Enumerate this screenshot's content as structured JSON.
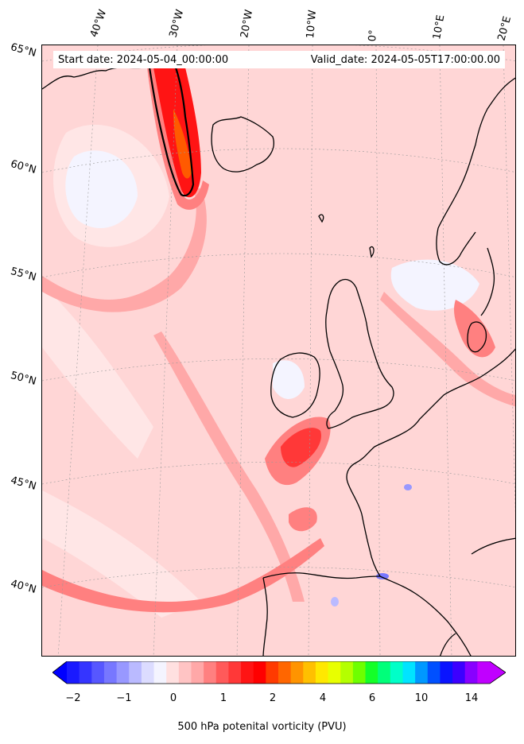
{
  "map": {
    "header_left": "Start date: 2024-05-04_00:00:00",
    "header_right": "Valid_date: 2024-05-05T17:00:00.00",
    "lon_labels": [
      "40°W",
      "30°W",
      "20°W",
      "10°W",
      "0°",
      "10°E",
      "20°E"
    ],
    "lat_labels": [
      "65°N",
      "60°N",
      "55°N",
      "50°N",
      "45°N",
      "40°N"
    ],
    "coastline_color": "#000000",
    "background_level_color": "#ffd6d6"
  },
  "colorbar": {
    "label": "500 hPa potenital vorticity (PVU)",
    "tick_labels": [
      "−2",
      "−1",
      "0",
      "1",
      "2",
      "4",
      "6",
      "10",
      "14"
    ],
    "colors": [
      "#1a1aff",
      "#3535ff",
      "#5757ff",
      "#7777ff",
      "#9898ff",
      "#babaff",
      "#dcdcff",
      "#f4f4ff",
      "#ffe0e0",
      "#ffc4c4",
      "#ffa8a8",
      "#ff8080",
      "#ff5a5a",
      "#ff3838",
      "#ff1414",
      "#ff0000",
      "#ff3a00",
      "#ff6600",
      "#ff9400",
      "#ffc000",
      "#ffe800",
      "#e8ff00",
      "#b4ff00",
      "#6eff00",
      "#14ff28",
      "#00ff7a",
      "#00ffc8",
      "#00e4ff",
      "#0098ff",
      "#0050ff",
      "#0a14ff",
      "#3c00ff",
      "#8800ff",
      "#c000ff"
    ]
  }
}
